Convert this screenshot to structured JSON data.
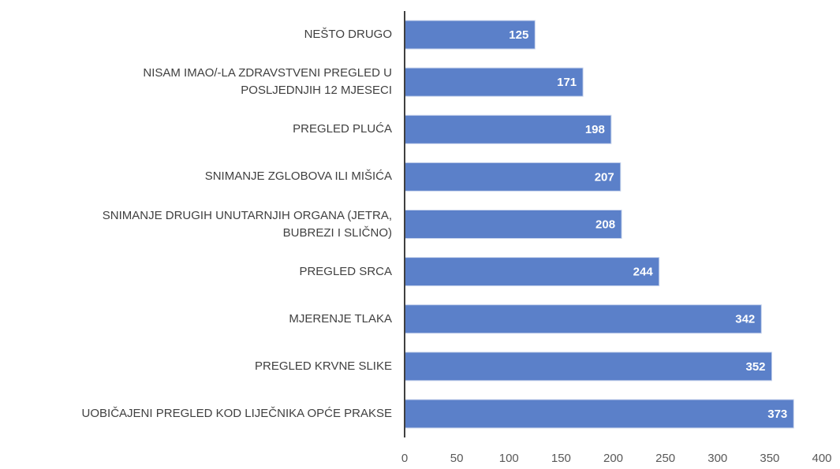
{
  "chart_data": {
    "type": "barh",
    "categories": [
      "NEŠTO DRUGO",
      "NISAM IMAO/-LA ZDRAVSTVENI PREGLED U\nPOSLJEDNJIH 12 MJESECI",
      "PREGLED PLUĆA",
      "SNIMANJE ZGLOBOVA ILI MIŠIĆA",
      "SNIMANJE DRUGIH UNUTARNJIH ORGANA (JETRA,\nBUBREZI I SLIČNO)",
      "PREGLED SRCA",
      "MJERENJE TLAKA",
      "PREGLED KRVNE SLIKE",
      "UOBIČAJENI PREGLED KOD LIJEČNIKA OPĆE PRAKSE"
    ],
    "values": [
      125,
      171,
      198,
      207,
      208,
      244,
      342,
      352,
      373
    ],
    "color": "#5b80c9",
    "xlim": [
      0,
      400
    ],
    "xticks": [
      0,
      50,
      100,
      150,
      200,
      250,
      300,
      350,
      400
    ],
    "grid": false
  }
}
